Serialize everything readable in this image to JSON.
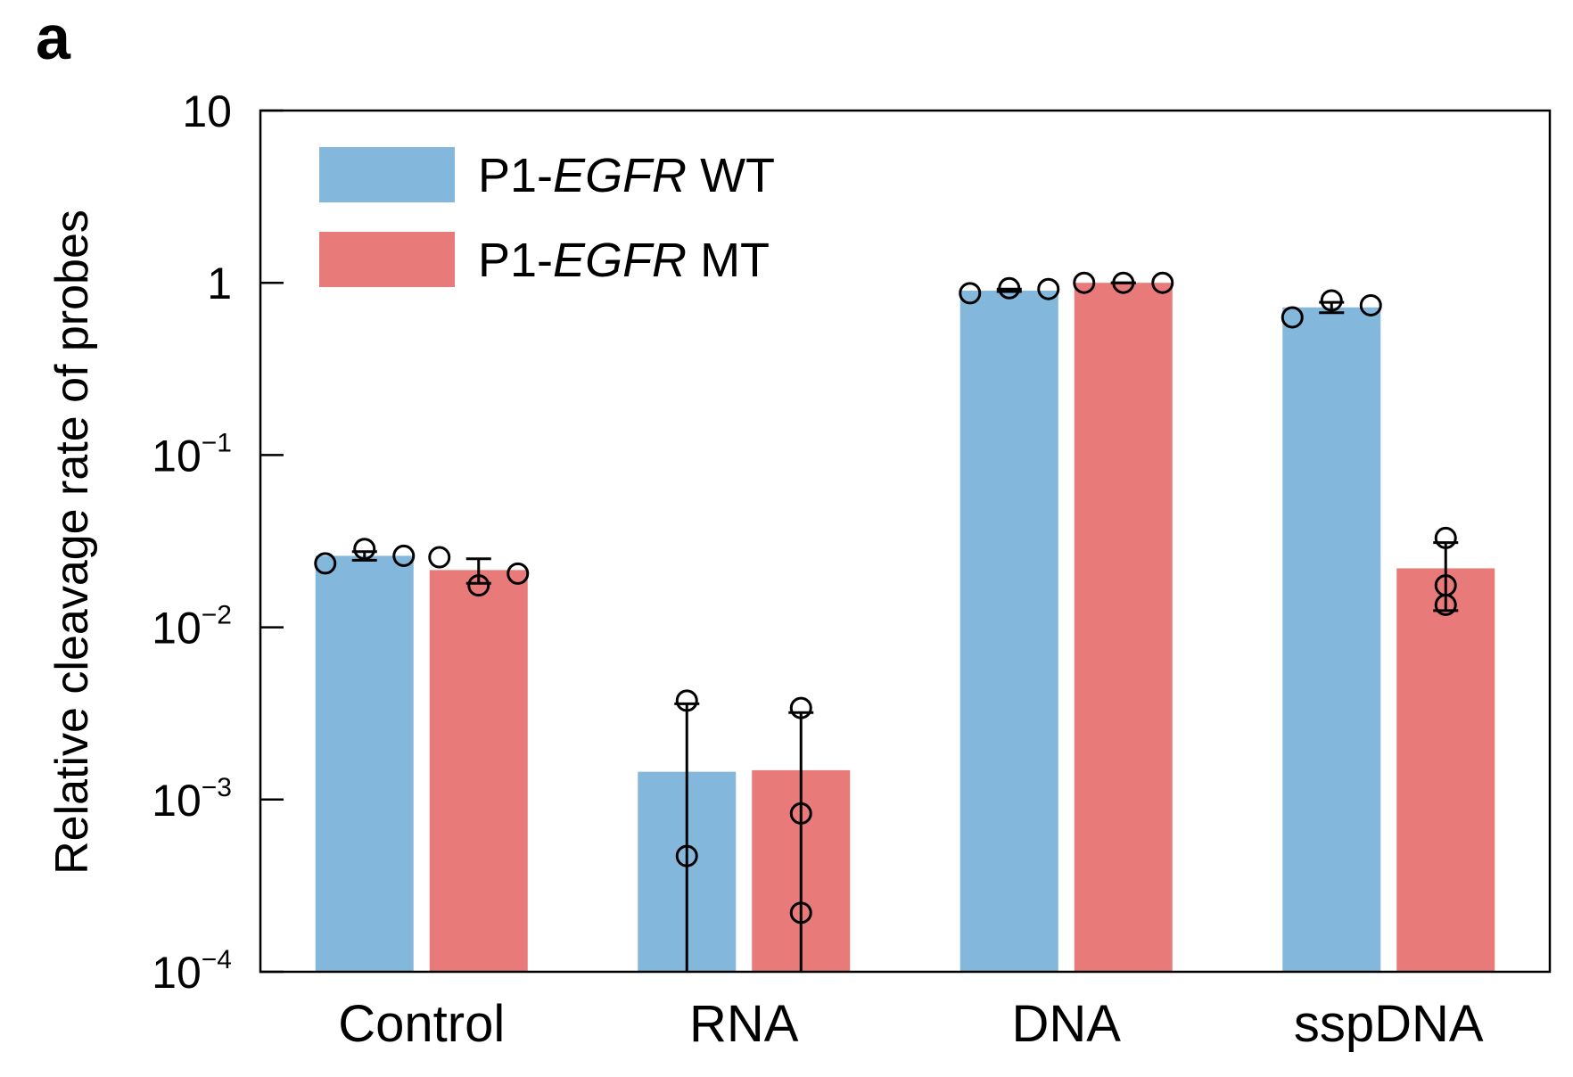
{
  "panel_label": "a",
  "chart_data": {
    "type": "bar",
    "scale": "log",
    "ylabel": "Relative cleavage rate of probes",
    "xlabel": "",
    "ylim": [
      0.0001,
      10
    ],
    "yticks": [
      {
        "value": 10,
        "base": "10",
        "exp": ""
      },
      {
        "value": 1,
        "base": "1",
        "exp": ""
      },
      {
        "value": 0.1,
        "base": "10",
        "exp": "−1"
      },
      {
        "value": 0.01,
        "base": "10",
        "exp": "−2"
      },
      {
        "value": 0.001,
        "base": "10",
        "exp": "−3"
      },
      {
        "value": 0.0001,
        "base": "10",
        "exp": "−4"
      }
    ],
    "categories": [
      "Control",
      "RNA",
      "DNA",
      "sspDNA"
    ],
    "legend": {
      "position": "top-left"
    },
    "series": [
      {
        "name_prefix": "P1-",
        "name_italic": "EGFR",
        "name_suffix": " WT",
        "color": "#84b7dc",
        "values": [
          0.026,
          0.00145,
          0.9,
          0.72
        ],
        "error_low": [
          0.0245,
          0.0001,
          0.89,
          0.67
        ],
        "error_high": [
          0.0275,
          0.0036,
          0.92,
          0.77
        ],
        "points": [
          [
            0.0235,
            0.0285,
            0.026
          ],
          [
            0.00375,
            0.00047,
            null
          ],
          [
            0.87,
            0.93,
            0.92
          ],
          [
            0.63,
            0.79,
            0.74
          ]
        ]
      },
      {
        "name_prefix": "P1-",
        "name_italic": "EGFR",
        "name_suffix": " MT",
        "color": "#e87b79",
        "values": [
          0.0215,
          0.00148,
          1.0,
          0.022
        ],
        "error_low": [
          0.018,
          0.0001,
          1.0,
          0.0125
        ],
        "error_high": [
          0.025,
          0.0032,
          1.0,
          0.031
        ],
        "points": [
          [
            0.0255,
            0.0175,
            0.0205
          ],
          [
            0.0034,
            0.00083,
            0.00022
          ],
          [
            1.0,
            1.0,
            1.0
          ],
          [
            0.033,
            0.0175,
            0.0135
          ]
        ]
      }
    ]
  }
}
